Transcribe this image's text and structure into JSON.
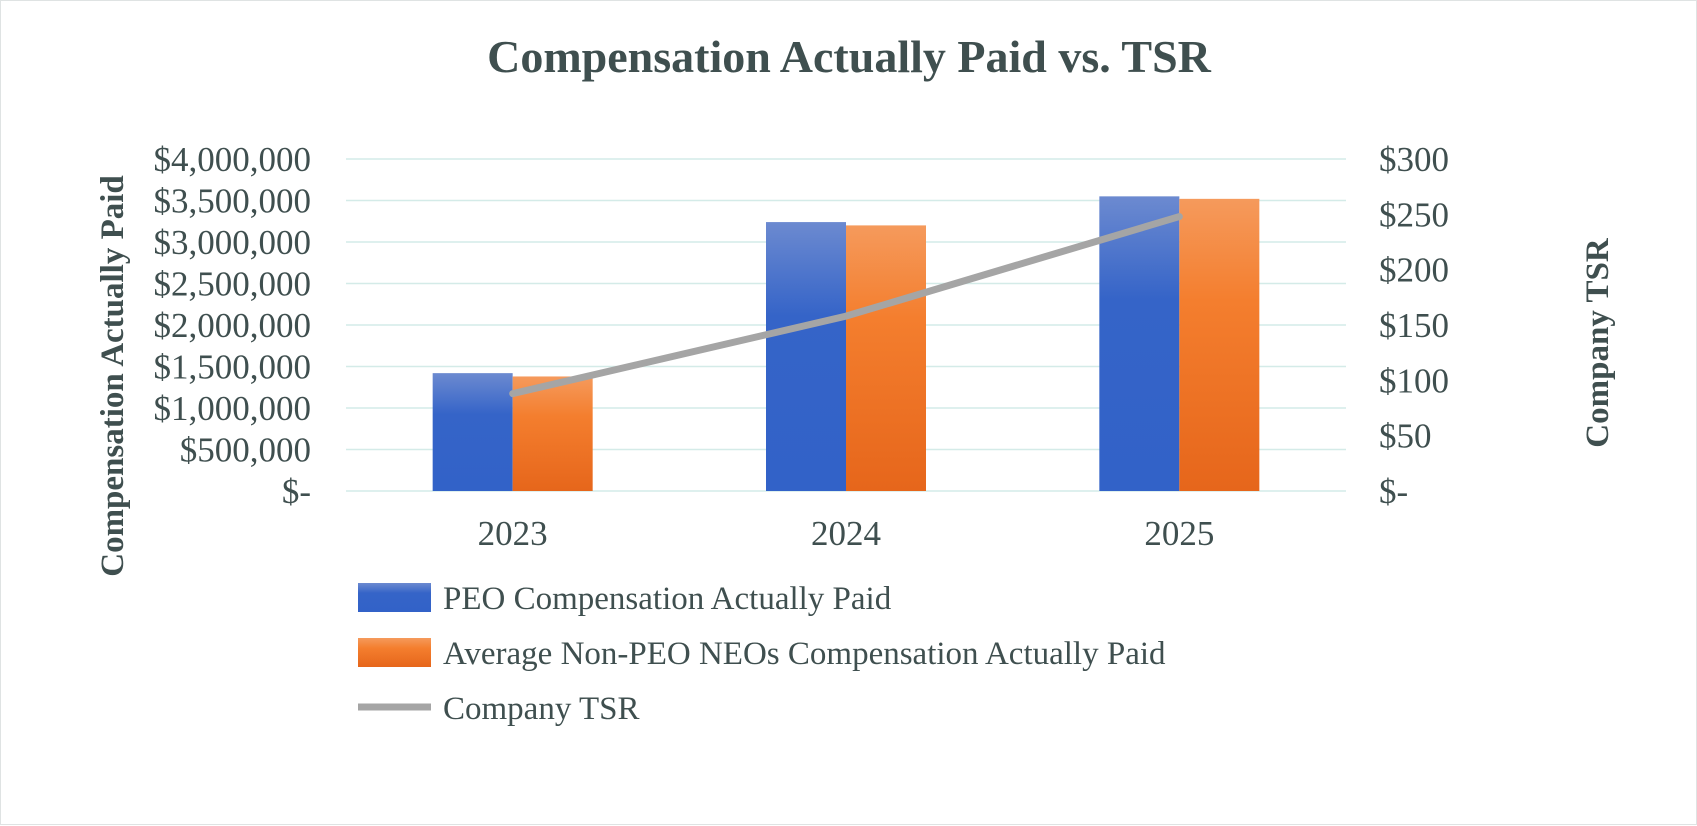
{
  "chart_data": {
    "type": "bar",
    "title": "Compensation Actually Paid vs. TSR",
    "categories": [
      "2023",
      "2024",
      "2025"
    ],
    "y_left": {
      "label": "Compensation Actually Paid",
      "lim": [
        0,
        4000000
      ],
      "ticks": [
        "$-",
        "$500,000",
        "$1,000,000",
        "$1,500,000",
        "$2,000,000",
        "$2,500,000",
        "$3,000,000",
        "$3,500,000",
        "$4,000,000"
      ]
    },
    "y_right": {
      "label": "Company TSR",
      "lim": [
        0,
        300
      ],
      "ticks": [
        "$-",
        "$50",
        "$100",
        "$150",
        "$200",
        "$250",
        "$300"
      ]
    },
    "series": [
      {
        "name": "PEO Compensation Actually Paid",
        "kind": "bar",
        "axis": "left",
        "color": "#3564c8",
        "values": [
          1420000,
          3240000,
          3550000
        ]
      },
      {
        "name": "Average Non-PEO NEOs Compensation Actually Paid",
        "kind": "bar",
        "axis": "left",
        "color": "#f07b2c",
        "values": [
          1380000,
          3200000,
          3520000
        ]
      },
      {
        "name": "Company TSR",
        "kind": "line",
        "axis": "right",
        "color": "#a5a5a5",
        "values": [
          88,
          158,
          248
        ]
      }
    ],
    "grid": true,
    "legend": "bottom-left"
  }
}
